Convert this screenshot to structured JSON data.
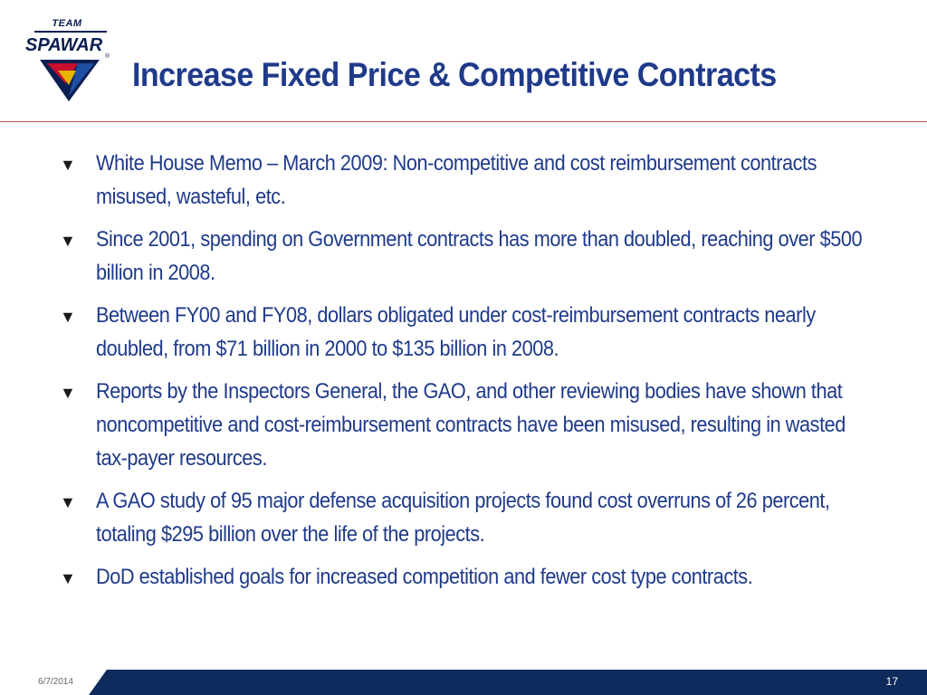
{
  "logo": {
    "top_text": "TEAM",
    "wordmark": "SPAWAR",
    "registered": "®",
    "colors": {
      "navy": "#0b1f52",
      "red": "#c8102e",
      "gold": "#e5b400",
      "blue": "#1f4fa3"
    }
  },
  "slide": {
    "title": "Increase Fixed Price & Competitive Contracts",
    "bullet_marker": "▼",
    "bullets": [
      "White House Memo – March 2009: Non-competitive and cost reimbursement contracts misused, wasteful, etc.",
      "Since 2001, spending on Government contracts has more than doubled, reaching over $500 billion in 2008.",
      "Between FY00 and FY08, dollars obligated under cost-reimbursement contracts nearly doubled, from $71 billion in 2000 to $135 billion in 2008.",
      "Reports by the Inspectors General, the GAO, and other reviewing bodies have shown that noncompetitive and cost-reimbursement contracts have been misused, resulting in wasted tax-payer resources.",
      "A GAO study of 95 major defense acquisition projects found cost overruns of 26 percent, totaling $295 billion over the life of the projects.",
      "DoD established goals for increased competition and fewer cost type contracts."
    ]
  },
  "footer": {
    "date": "6/7/2014",
    "page_number": "17",
    "band_color": "#0f2a5c"
  },
  "colors": {
    "title": "#1f3a8a",
    "body_text": "#1f3a8a",
    "rule": "#b84a5a"
  }
}
